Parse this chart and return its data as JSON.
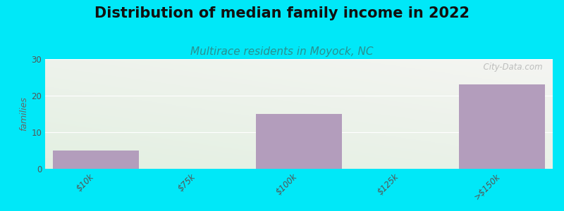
{
  "title": "Distribution of median family income in 2022",
  "subtitle": "Multirace residents in Moyock, NC",
  "categories": [
    "$10k",
    "$75k",
    "$100k",
    "$125k",
    ">$150k"
  ],
  "values": [
    5,
    0,
    15,
    0,
    23
  ],
  "bar_color": "#b39dbc",
  "ylabel": "families",
  "ylim": [
    0,
    30
  ],
  "yticks": [
    0,
    10,
    20,
    30
  ],
  "background_outer": "#00e8f8",
  "bg_top_left": "#d8edd8",
  "bg_top_right": "#f0f0ee",
  "bg_bottom_left": "#c8e8c8",
  "bg_bottom_right": "#e8ede8",
  "title_fontsize": 15,
  "subtitle_fontsize": 11,
  "subtitle_color": "#2a9090",
  "watermark": "  City-Data.com"
}
